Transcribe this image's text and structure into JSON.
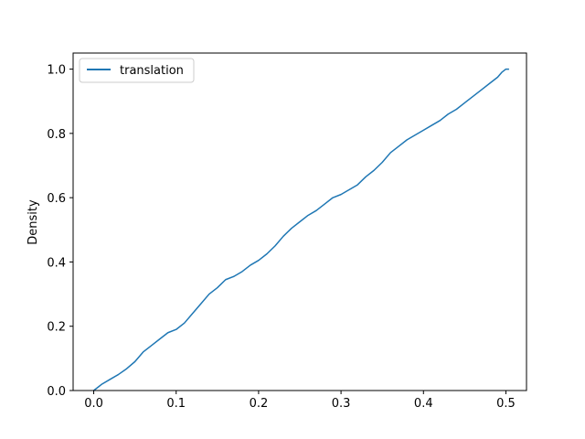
{
  "chart_data": {
    "type": "line",
    "title": "",
    "xlabel": "",
    "ylabel": "Density",
    "xlim": [
      -0.025,
      0.525
    ],
    "ylim": [
      0.0,
      1.05
    ],
    "x_ticks": [
      0.0,
      0.1,
      0.2,
      0.3,
      0.4,
      0.5
    ],
    "x_tick_labels": [
      "0.0",
      "0.1",
      "0.2",
      "0.3",
      "0.4",
      "0.5"
    ],
    "y_ticks": [
      0.0,
      0.2,
      0.4,
      0.6,
      0.8,
      1.0
    ],
    "y_tick_labels": [
      "0.0",
      "0.2",
      "0.4",
      "0.6",
      "0.8",
      "1.0"
    ],
    "grid": false,
    "legend": {
      "placement": "upper-left",
      "entries": [
        "translation"
      ]
    },
    "series": [
      {
        "name": "translation",
        "color": "#1f77b4",
        "points": [
          [
            0.0,
            0.0
          ],
          [
            0.005,
            0.01
          ],
          [
            0.01,
            0.02
          ],
          [
            0.02,
            0.035
          ],
          [
            0.03,
            0.05
          ],
          [
            0.04,
            0.068
          ],
          [
            0.05,
            0.09
          ],
          [
            0.06,
            0.12
          ],
          [
            0.07,
            0.14
          ],
          [
            0.08,
            0.16
          ],
          [
            0.09,
            0.18
          ],
          [
            0.1,
            0.19
          ],
          [
            0.11,
            0.21
          ],
          [
            0.12,
            0.24
          ],
          [
            0.13,
            0.27
          ],
          [
            0.14,
            0.3
          ],
          [
            0.15,
            0.32
          ],
          [
            0.16,
            0.345
          ],
          [
            0.17,
            0.355
          ],
          [
            0.18,
            0.37
          ],
          [
            0.19,
            0.39
          ],
          [
            0.2,
            0.405
          ],
          [
            0.21,
            0.425
          ],
          [
            0.22,
            0.45
          ],
          [
            0.23,
            0.48
          ],
          [
            0.24,
            0.505
          ],
          [
            0.25,
            0.525
          ],
          [
            0.26,
            0.545
          ],
          [
            0.27,
            0.56
          ],
          [
            0.28,
            0.58
          ],
          [
            0.29,
            0.6
          ],
          [
            0.3,
            0.61
          ],
          [
            0.31,
            0.625
          ],
          [
            0.32,
            0.64
          ],
          [
            0.33,
            0.665
          ],
          [
            0.34,
            0.685
          ],
          [
            0.35,
            0.71
          ],
          [
            0.36,
            0.74
          ],
          [
            0.37,
            0.76
          ],
          [
            0.38,
            0.78
          ],
          [
            0.39,
            0.795
          ],
          [
            0.4,
            0.81
          ],
          [
            0.41,
            0.825
          ],
          [
            0.42,
            0.84
          ],
          [
            0.43,
            0.86
          ],
          [
            0.44,
            0.875
          ],
          [
            0.45,
            0.895
          ],
          [
            0.46,
            0.915
          ],
          [
            0.47,
            0.935
          ],
          [
            0.48,
            0.955
          ],
          [
            0.49,
            0.975
          ],
          [
            0.495,
            0.99
          ],
          [
            0.5,
            1.0
          ],
          [
            0.503,
            1.0
          ]
        ]
      }
    ]
  }
}
